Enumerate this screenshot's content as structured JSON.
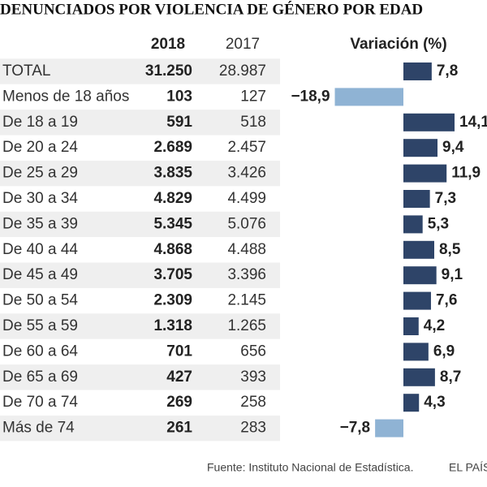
{
  "title": "DENUNCIADOS POR VIOLENCIA DE GÉNERO POR EDAD",
  "table": {
    "columns": [
      "2018",
      "2017",
      "Variación (%)"
    ],
    "rows": [
      {
        "label": "TOTAL",
        "v2018": "31.250",
        "v2017": "28.987",
        "variation": {
          "value": 7.8,
          "label": "7,8"
        }
      },
      {
        "label": "Menos de 18 años",
        "v2018": "103",
        "v2017": "127",
        "variation": {
          "value": -18.9,
          "label": "−18,9"
        }
      },
      {
        "label": "De 18 a 19",
        "v2018": "591",
        "v2017": "518",
        "variation": {
          "value": 14.1,
          "label": "14,1"
        }
      },
      {
        "label": "De 20 a 24",
        "v2018": "2.689",
        "v2017": "2.457",
        "variation": {
          "value": 9.4,
          "label": "9,4"
        }
      },
      {
        "label": "De 25 a 29",
        "v2018": "3.835",
        "v2017": "3.426",
        "variation": {
          "value": 11.9,
          "label": "11,9"
        }
      },
      {
        "label": "De 30 a 34",
        "v2018": "4.829",
        "v2017": "4.499",
        "variation": {
          "value": 7.3,
          "label": "7,3"
        }
      },
      {
        "label": "De 35 a 39",
        "v2018": "5.345",
        "v2017": "5.076",
        "variation": {
          "value": 5.3,
          "label": "5,3"
        }
      },
      {
        "label": "De 40 a 44",
        "v2018": "4.868",
        "v2017": "4.488",
        "variation": {
          "value": 8.5,
          "label": "8,5"
        }
      },
      {
        "label": "De 45 a 49",
        "v2018": "3.705",
        "v2017": "3.396",
        "variation": {
          "value": 9.1,
          "label": "9,1"
        }
      },
      {
        "label": "De 50 a 54",
        "v2018": "2.309",
        "v2017": "2.145",
        "variation": {
          "value": 7.6,
          "label": "7,6"
        }
      },
      {
        "label": "De 55 a 59",
        "v2018": "1.318",
        "v2017": "1.265",
        "variation": {
          "value": 4.2,
          "label": "4,2"
        }
      },
      {
        "label": "De 60 a 64",
        "v2018": "701",
        "v2017": "656",
        "variation": {
          "value": 6.9,
          "label": "6,9"
        }
      },
      {
        "label": "De 65 a 69",
        "v2018": "427",
        "v2017": "393",
        "variation": {
          "value": 8.7,
          "label": "8,7"
        }
      },
      {
        "label": "De 70 a 74",
        "v2018": "269",
        "v2017": "258",
        "variation": {
          "value": 4.3,
          "label": "4,3"
        }
      },
      {
        "label": "Más de 74",
        "v2018": "261",
        "v2017": "283",
        "variation": {
          "value": -7.8,
          "label": "−7,8"
        }
      }
    ],
    "positive_color": "#2e4468",
    "negative_color": "#8fb3d4"
  },
  "source": "Fuente: Instituto Nacional de Estadística.",
  "brand": "EL PAÍS"
}
